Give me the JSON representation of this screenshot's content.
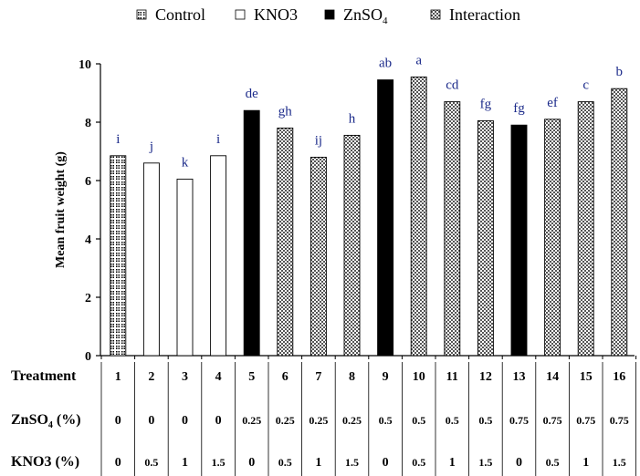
{
  "chart_data": {
    "type": "bar",
    "ylabel": "Mean fruit weight (g)",
    "ylim": [
      0,
      10
    ],
    "yticks": [
      0,
      2,
      4,
      6,
      8,
      10
    ],
    "legend": [
      {
        "name": "Control",
        "pattern": "control"
      },
      {
        "name": "KNO3",
        "pattern": "kno3"
      },
      {
        "name": "ZnSO",
        "sub": "4",
        "pattern": "znso4"
      },
      {
        "name": "Interaction",
        "pattern": "interaction"
      }
    ],
    "legend_position": "top",
    "grid": false,
    "bars": [
      {
        "treatment": "1",
        "value": 6.85,
        "group": "control",
        "letter": "i",
        "znso4": "0",
        "kno3": "0"
      },
      {
        "treatment": "2",
        "value": 6.6,
        "group": "kno3",
        "letter": "j",
        "znso4": "0",
        "kno3": "0.5"
      },
      {
        "treatment": "3",
        "value": 6.05,
        "group": "kno3",
        "letter": "k",
        "znso4": "0",
        "kno3": "1"
      },
      {
        "treatment": "4",
        "value": 6.85,
        "group": "kno3",
        "letter": "i",
        "znso4": "0",
        "kno3": "1.5"
      },
      {
        "treatment": "5",
        "value": 8.4,
        "group": "znso4",
        "letter": "de",
        "znso4": "0.25",
        "kno3": "0"
      },
      {
        "treatment": "6",
        "value": 7.8,
        "group": "interaction",
        "letter": "gh",
        "znso4": "0.25",
        "kno3": "0.5"
      },
      {
        "treatment": "7",
        "value": 6.8,
        "group": "interaction",
        "letter": "ij",
        "znso4": "0.25",
        "kno3": "1"
      },
      {
        "treatment": "8",
        "value": 7.55,
        "group": "interaction",
        "letter": "h",
        "znso4": "0.25",
        "kno3": "1.5"
      },
      {
        "treatment": "9",
        "value": 9.45,
        "group": "znso4",
        "letter": "ab",
        "znso4": "0.5",
        "kno3": "0"
      },
      {
        "treatment": "10",
        "value": 9.55,
        "group": "interaction",
        "letter": "a",
        "znso4": "0.5",
        "kno3": "0.5"
      },
      {
        "treatment": "11",
        "value": 8.7,
        "group": "interaction",
        "letter": "cd",
        "znso4": "0.5",
        "kno3": "1"
      },
      {
        "treatment": "12",
        "value": 8.05,
        "group": "interaction",
        "letter": "fg",
        "znso4": "0.5",
        "kno3": "1.5"
      },
      {
        "treatment": "13",
        "value": 7.9,
        "group": "znso4",
        "letter": "fg",
        "znso4": "0.75",
        "kno3": "0"
      },
      {
        "treatment": "14",
        "value": 8.1,
        "group": "interaction",
        "letter": "ef",
        "znso4": "0.75",
        "kno3": "0.5"
      },
      {
        "treatment": "15",
        "value": 8.7,
        "group": "interaction",
        "letter": "c",
        "znso4": "0.75",
        "kno3": "1"
      },
      {
        "treatment": "16",
        "value": 9.15,
        "group": "interaction",
        "letter": "b",
        "znso4": "0.75",
        "kno3": "1.5"
      }
    ],
    "table_rows": [
      {
        "label": "Treatment",
        "field": "treatment"
      },
      {
        "label": "ZnSO",
        "sub": "4",
        "label_suffix": " (%)",
        "field": "znso4"
      },
      {
        "label": "KNO3 (%)",
        "field": "kno3"
      }
    ]
  }
}
